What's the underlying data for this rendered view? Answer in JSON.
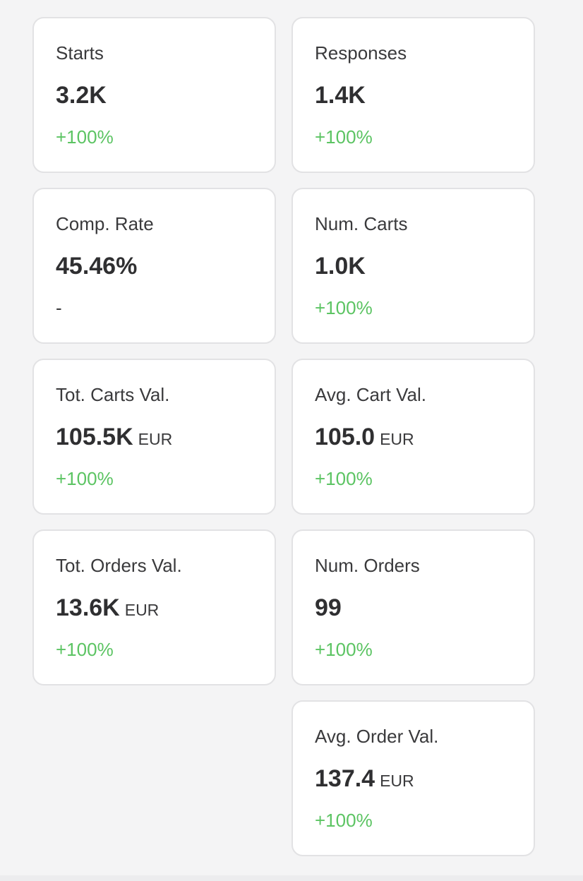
{
  "theme": {
    "background": "#f4f4f5",
    "card_background": "#ffffff",
    "card_border": "#e2e2e4",
    "positive_color": "#5cc463",
    "text_color": "#3a3a3c"
  },
  "metrics": [
    {
      "label": "Starts",
      "value": "3.2K",
      "unit": "",
      "change": "+100%"
    },
    {
      "label": "Responses",
      "value": "1.4K",
      "unit": "",
      "change": "+100%"
    },
    {
      "label": "Comp. Rate",
      "value": "45.46%",
      "unit": "",
      "change": "-"
    },
    {
      "label": "Num. Carts",
      "value": "1.0K",
      "unit": "",
      "change": "+100%"
    },
    {
      "label": "Tot. Carts Val.",
      "value": "105.5K",
      "unit": "EUR",
      "change": "+100%"
    },
    {
      "label": "Avg. Cart Val.",
      "value": "105.0",
      "unit": "EUR",
      "change": "+100%"
    },
    {
      "label": "Tot. Orders Val.",
      "value": "13.6K",
      "unit": "EUR",
      "change": "+100%"
    },
    {
      "label": "Num. Orders",
      "value": "99",
      "unit": "",
      "change": "+100%"
    },
    {
      "label": "Avg. Order Val.",
      "value": "137.4",
      "unit": "EUR",
      "change": "+100%"
    }
  ]
}
